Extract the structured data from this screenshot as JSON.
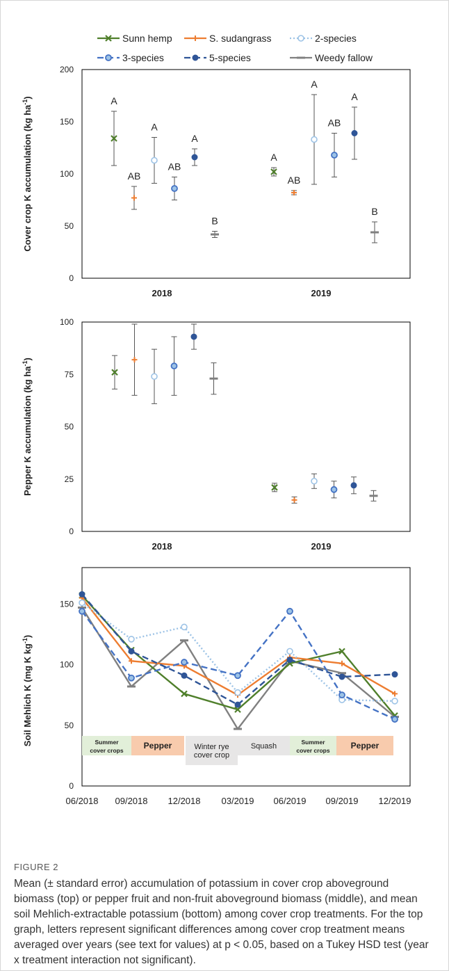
{
  "figure": {
    "label": "FIGURE 2",
    "caption": "Mean (± standard error) accumulation of potassium in cover crop aboveground biomass (top) or pepper fruit and non-fruit aboveground biomass (middle), and mean soil Mehlich-extractable potassium (bottom) among cover crop treatments. For the top graph, letters represent significant differences among cover crop treatment means averaged over years (see text for values) at p < 0.05, based on a Tukey HSD test (year x treatment interaction not significant)."
  },
  "legend": [
    {
      "name": "Sunn hemp",
      "color": "#4f7f2b",
      "dash": "solid",
      "marker": "x"
    },
    {
      "name": "S. sudangrass",
      "color": "#ed7d31",
      "dash": "solid",
      "marker": "plus"
    },
    {
      "name": "2-species",
      "color": "#9dc3e6",
      "dash": "dotted",
      "marker": "circle-open"
    },
    {
      "name": "3-species",
      "color": "#4472c4",
      "dash": "dashed",
      "marker": "circle-ring"
    },
    {
      "name": "5-species",
      "color": "#2f5597",
      "dash": "dashed",
      "marker": "circle-filled"
    },
    {
      "name": "Weedy fallow",
      "color": "#808080",
      "dash": "solid",
      "marker": "bar"
    }
  ],
  "chart_data": [
    {
      "type": "scatter",
      "ylabel": "Cover crop K accumulation (kg ha-1)",
      "categories": [
        "2018",
        "2019"
      ],
      "ylim": [
        0,
        200
      ],
      "yticks": [
        0,
        50,
        100,
        150,
        200
      ],
      "series": [
        {
          "name": "Sunn hemp",
          "values": [
            134,
            102
          ],
          "errors": [
            26,
            4
          ],
          "letters": [
            "A",
            "A"
          ]
        },
        {
          "name": "S. sudangrass",
          "values": [
            77,
            82
          ],
          "errors": [
            11,
            2
          ],
          "letters": [
            "AB",
            "AB"
          ]
        },
        {
          "name": "2-species",
          "values": [
            113,
            133
          ],
          "errors": [
            22,
            43
          ],
          "letters": [
            "A",
            "A"
          ]
        },
        {
          "name": "3-species",
          "values": [
            86,
            118
          ],
          "errors": [
            11,
            21
          ],
          "letters": [
            "AB",
            "AB"
          ]
        },
        {
          "name": "5-species",
          "values": [
            116,
            139
          ],
          "errors": [
            8,
            25
          ],
          "letters": [
            "A",
            "A"
          ]
        },
        {
          "name": "Weedy fallow",
          "values": [
            42,
            44
          ],
          "errors": [
            3,
            10
          ],
          "letters": [
            "B",
            "B"
          ]
        }
      ]
    },
    {
      "type": "scatter",
      "ylabel": "Pepper K accumulation (kg ha-1)",
      "categories": [
        "2018",
        "2019"
      ],
      "ylim": [
        0,
        100
      ],
      "yticks": [
        0,
        25,
        50,
        75,
        100
      ],
      "series": [
        {
          "name": "Sunn hemp",
          "values": [
            76,
            21
          ],
          "errors": [
            8,
            2
          ]
        },
        {
          "name": "S. sudangrass",
          "values": [
            82,
            15
          ],
          "errors": [
            17,
            1.5
          ]
        },
        {
          "name": "2-species",
          "values": [
            74,
            24
          ],
          "errors": [
            13,
            3.5
          ]
        },
        {
          "name": "3-species",
          "values": [
            79,
            20
          ],
          "errors": [
            14,
            4
          ]
        },
        {
          "name": "5-species",
          "values": [
            93,
            22
          ],
          "errors": [
            6,
            4
          ]
        },
        {
          "name": "Weedy fallow",
          "values": [
            73,
            17
          ],
          "errors": [
            7.5,
            2.5
          ]
        }
      ]
    },
    {
      "type": "line",
      "ylabel": "Soil Mehlich K (mg K kg-1)",
      "x": [
        "06/2018",
        "09/2018",
        "12/2018",
        "03/2019",
        "06/2019",
        "09/2019",
        "12/2019"
      ],
      "ylim": [
        0,
        180
      ],
      "yticks": [
        0,
        50,
        100,
        150
      ],
      "series": [
        {
          "name": "Sunn hemp",
          "values": [
            157,
            112,
            76,
            63,
            101,
            111,
            58
          ]
        },
        {
          "name": "S. sudangrass",
          "values": [
            155,
            103,
            99,
            75,
            106,
            101,
            76
          ]
        },
        {
          "name": "2-species",
          "values": [
            151,
            121,
            131,
            77,
            111,
            71,
            70
          ]
        },
        {
          "name": "3-species",
          "values": [
            144,
            89,
            102,
            91,
            144,
            75,
            55
          ]
        },
        {
          "name": "5-species",
          "values": [
            158,
            111,
            91,
            67,
            104,
            90,
            92
          ]
        },
        {
          "name": "Weedy fallow",
          "values": [
            147,
            82,
            120,
            47,
            103,
            93,
            57
          ]
        }
      ],
      "phases": [
        {
          "label_lines": [
            "Summer",
            "cover crops"
          ],
          "color": "#e2efd9",
          "bold": true
        },
        {
          "label_lines": [
            "Pepper"
          ],
          "color": "#f8cbad",
          "bold": true
        },
        {
          "label_lines": [
            "Winter rye",
            "cover crop"
          ],
          "color": "#e7e6e6",
          "bold": false
        },
        {
          "label_lines": [
            "Squash"
          ],
          "color": "#e7e6e6",
          "bold": false
        },
        {
          "label_lines": [
            "Summer",
            "cover crops"
          ],
          "color": "#e2efd9",
          "bold": true
        },
        {
          "label_lines": [
            "Pepper"
          ],
          "color": "#f8cbad",
          "bold": true
        }
      ]
    }
  ]
}
